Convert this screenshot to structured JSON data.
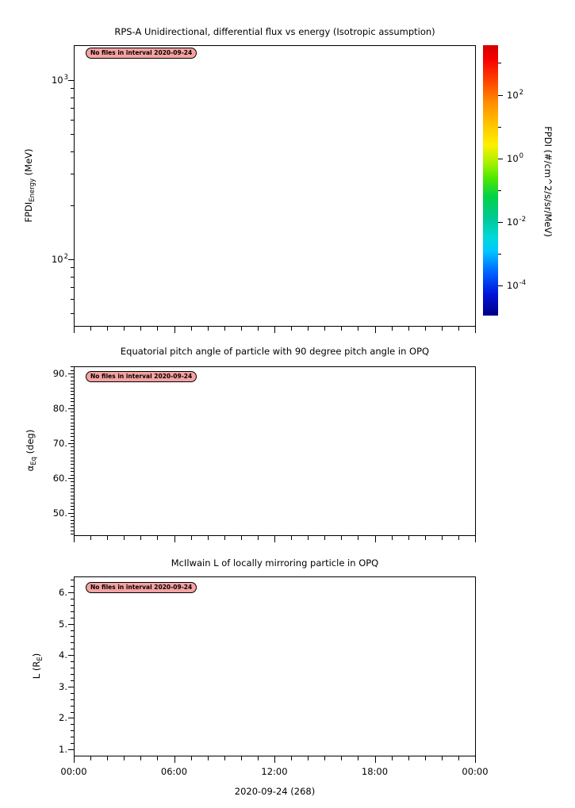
{
  "figure": {
    "background": "#ffffff",
    "foreground": "#000000"
  },
  "chart_data": {
    "type": "line",
    "panels": [
      {
        "id": "flux",
        "plot_type": "heatmap",
        "title": "RPS-A Unidirectional, differential flux vs energy (Isotropic assumption)",
        "badge": "No files in interval 2020-09-24",
        "ylabel_segments": [
          {
            "t": "FPDI"
          },
          {
            "t": "Energy",
            "sub": true
          },
          {
            "t": " (MeV)"
          }
        ],
        "yscale": "log",
        "ylim": [
          42.5,
          1566
        ],
        "ymajor": [
          {
            "v": 1000,
            "label": "10^3"
          },
          {
            "v": 100,
            "label": "10^2"
          }
        ],
        "series": []
      },
      {
        "id": "pitch-angle",
        "plot_type": "line",
        "title": "Equatorial pitch angle of particle with 90 degree pitch angle in OPQ",
        "badge": "No files in interval 2020-09-24",
        "ylabel_segments": [
          {
            "t": "α"
          },
          {
            "t": "Eq",
            "sub": true
          },
          {
            "t": " (deg)"
          }
        ],
        "yscale": "linear",
        "ylim": [
          43.6,
          92.05
        ],
        "yminor_step": 1,
        "ymajor": [
          {
            "v": 90,
            "label": "90."
          },
          {
            "v": 80,
            "label": "80."
          },
          {
            "v": 70,
            "label": "70."
          },
          {
            "v": 60,
            "label": "60."
          },
          {
            "v": 50,
            "label": "50."
          }
        ],
        "series": []
      },
      {
        "id": "mcilwain-l",
        "plot_type": "line",
        "title": "McIlwain L of locally mirroring particle in OPQ",
        "badge": "No files in interval 2020-09-24",
        "ylabel_segments": [
          {
            "t": "L (R"
          },
          {
            "t": "E",
            "sub": true
          },
          {
            "t": ")"
          }
        ],
        "yscale": "linear",
        "ylim": [
          0.8,
          6.505
        ],
        "yminor_step": 0.2,
        "ymajor": [
          {
            "v": 6,
            "label": "6."
          },
          {
            "v": 5,
            "label": "5."
          },
          {
            "v": 4,
            "label": "4."
          },
          {
            "v": 3,
            "label": "3."
          },
          {
            "v": 2,
            "label": "2."
          },
          {
            "v": 1,
            "label": "1."
          }
        ],
        "series": []
      }
    ],
    "x_axis": {
      "lim_hours": [
        0,
        24
      ],
      "major_ticks_hours": [
        0,
        6,
        12,
        18,
        24
      ],
      "major_labels": [
        "00:00",
        "06:00",
        "12:00",
        "18:00",
        "00:00"
      ],
      "minor_step_hours": 1,
      "title": "2020-09-24 (268)"
    },
    "colorbar": {
      "title": "FPDI (#/cm^2/s/sr/MeV)",
      "scale": "log",
      "exp_lim": [
        -4.92,
        3.56
      ],
      "ticks_exp": [
        3,
        2,
        1,
        0,
        -1,
        -2,
        -3,
        -4
      ],
      "labels": [
        {
          "exp": 2,
          "label": "10^2"
        },
        {
          "exp": 0,
          "label": "10^0"
        },
        {
          "exp": -2,
          "label": "10^-2"
        },
        {
          "exp": -4,
          "label": "10^-4"
        }
      ],
      "gradient_top_to_bottom": [
        {
          "pos": 0,
          "color": "#d40000"
        },
        {
          "pos": 5,
          "color": "#f50000"
        },
        {
          "pos": 13,
          "color": "#ff4000"
        },
        {
          "pos": 21,
          "color": "#ff8c00"
        },
        {
          "pos": 30,
          "color": "#ffc800"
        },
        {
          "pos": 37,
          "color": "#fdf000"
        },
        {
          "pos": 44,
          "color": "#a0f000"
        },
        {
          "pos": 49,
          "color": "#50e800"
        },
        {
          "pos": 56,
          "color": "#00d248"
        },
        {
          "pos": 64,
          "color": "#00c896"
        },
        {
          "pos": 71,
          "color": "#00d8d8"
        },
        {
          "pos": 76,
          "color": "#00c8ff"
        },
        {
          "pos": 84,
          "color": "#0064ff"
        },
        {
          "pos": 92,
          "color": "#0014dc"
        },
        {
          "pos": 100,
          "color": "#000082"
        }
      ]
    },
    "badge_style": {
      "bg": "#f6a2a2",
      "border": "#000000",
      "text_color": "#000000"
    }
  }
}
